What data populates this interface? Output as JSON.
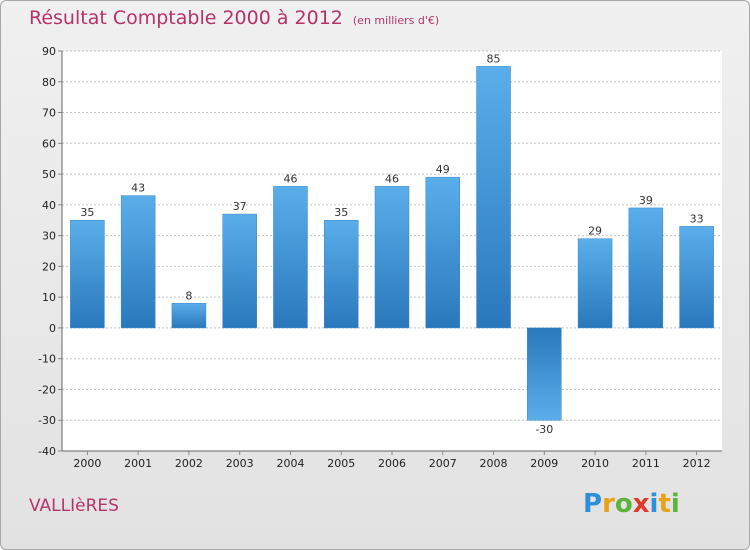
{
  "header": {
    "title": "Résultat Comptable 2000 à 2012",
    "unit": "(en milliers d'€)"
  },
  "footer": {
    "town": "VALLIèRES",
    "logo_letters": [
      {
        "char": "P",
        "color": "#2f8fd8"
      },
      {
        "char": "r",
        "color": "#e8a21a"
      },
      {
        "char": "o",
        "color": "#5ab33a"
      },
      {
        "char": "x",
        "color": "#e03a2a"
      },
      {
        "char": "i",
        "color": "#2f8fd8"
      },
      {
        "char": "t",
        "color": "#e8a21a"
      },
      {
        "char": "i",
        "color": "#5ab33a"
      }
    ]
  },
  "colors": {
    "bar_light": "#5aaeea",
    "bar_dark": "#2a78bc",
    "grid": "#c4c4c4",
    "plot_bg": "#ffffff"
  },
  "chart_data": {
    "type": "bar",
    "title": "Résultat Comptable 2000 à 2012",
    "subtitle": "(en milliers d'€)",
    "categories": [
      "2000",
      "2001",
      "2002",
      "2003",
      "2004",
      "2005",
      "2006",
      "2007",
      "2008",
      "2009",
      "2010",
      "2011",
      "2012"
    ],
    "values": [
      35,
      43,
      8,
      37,
      46,
      35,
      46,
      49,
      85,
      -30,
      29,
      39,
      33
    ],
    "value_labels": [
      "35",
      "43",
      "8",
      "37",
      "46",
      "35",
      "46",
      "49",
      "85",
      "-30",
      "29",
      "39",
      "33"
    ],
    "yticks": [
      90,
      80,
      70,
      60,
      50,
      40,
      30,
      20,
      10,
      0,
      -10,
      -20,
      -30,
      -40
    ],
    "ylim": [
      -40,
      90
    ],
    "xlabel": "",
    "ylabel": "",
    "grid": true
  }
}
